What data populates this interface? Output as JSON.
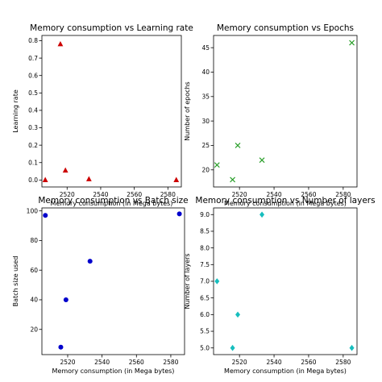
{
  "chart_data": [
    {
      "type": "scatter",
      "title": "Memory consumption vs Learning rate",
      "xlabel": "Memory consumption (in Mega bytes)",
      "ylabel": "Learning rate",
      "xlim": [
        2505,
        2588
      ],
      "ylim": [
        -0.04,
        0.83
      ],
      "xticks": [
        2520,
        2540,
        2560,
        2580
      ],
      "yticks": [
        0.0,
        0.1,
        0.2,
        0.3,
        0.4,
        0.5,
        0.6,
        0.7,
        0.8
      ],
      "ytick_labels": [
        "0.0",
        "0.1",
        "0.2",
        "0.3",
        "0.4",
        "0.5",
        "0.6",
        "0.7",
        "0.8"
      ],
      "marker": "triangle",
      "color": "#cc0000",
      "x": [
        2507,
        2516,
        2519,
        2533,
        2585
      ],
      "y": [
        0.0,
        0.78,
        0.055,
        0.005,
        0.0
      ]
    },
    {
      "type": "scatter",
      "title": "Memory consumption vs Epochs",
      "xlabel": "Memory consumption (in Mega bytes)",
      "ylabel": "Number of epochs",
      "xlim": [
        2505,
        2588
      ],
      "ylim": [
        16.5,
        47.5
      ],
      "xticks": [
        2520,
        2540,
        2560,
        2580
      ],
      "yticks": [
        20,
        25,
        30,
        35,
        40,
        45
      ],
      "ytick_labels": [
        "20",
        "25",
        "30",
        "35",
        "40",
        "45"
      ],
      "marker": "x",
      "color": "#2ca02c",
      "x": [
        2507,
        2516,
        2519,
        2533,
        2585
      ],
      "y": [
        21,
        18,
        25,
        22,
        46
      ]
    },
    {
      "type": "scatter",
      "title": "Memory consumption vs Batch size",
      "xlabel": "Memory consumption (in Mega bytes)",
      "ylabel": "Batch size used",
      "xlim": [
        2505,
        2588
      ],
      "ylim": [
        3,
        102
      ],
      "xticks": [
        2520,
        2540,
        2560,
        2580
      ],
      "yticks": [
        20,
        40,
        60,
        80,
        100
      ],
      "ytick_labels": [
        "20",
        "40",
        "60",
        "80",
        "100"
      ],
      "marker": "circle",
      "color": "#0000cc",
      "x": [
        2507,
        2516,
        2519,
        2533,
        2585
      ],
      "y": [
        97,
        8,
        40,
        66,
        98
      ]
    },
    {
      "type": "scatter",
      "title": "Memory consumption vs Number of layers",
      "xlabel": "Memory consumption (in Mega bytes)",
      "ylabel": "Number of layers",
      "xlim": [
        2505,
        2588
      ],
      "ylim": [
        4.8,
        9.2
      ],
      "xticks": [
        2520,
        2540,
        2560,
        2580
      ],
      "yticks": [
        5.0,
        5.5,
        6.0,
        6.5,
        7.0,
        7.5,
        8.0,
        8.5,
        9.0
      ],
      "ytick_labels": [
        "5.0",
        "5.5",
        "6.0",
        "6.5",
        "7.0",
        "7.5",
        "8.0",
        "8.5",
        "9.0"
      ],
      "marker": "diamond",
      "color": "#17bebe",
      "x": [
        2507,
        2516,
        2519,
        2533,
        2585
      ],
      "y": [
        7,
        5,
        6,
        9,
        5
      ]
    }
  ]
}
